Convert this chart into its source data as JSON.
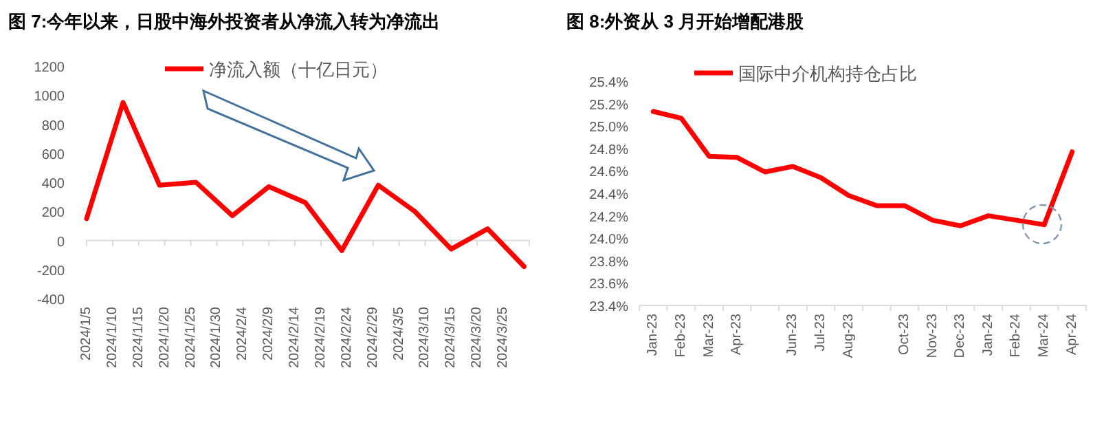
{
  "chart_data": [
    {
      "type": "line",
      "title": "图 7:今年以来，日股中海外投资者从净流入转为净流出",
      "x": [
        "2024-01-05",
        "2024-01-12",
        "2024-01-19",
        "2024-01-26",
        "2024-02-02",
        "2024-02-09",
        "2024-02-16",
        "2024-02-23",
        "2024-03-01",
        "2024-03-08",
        "2024-03-15",
        "2024-03-22",
        "2024-03-29"
      ],
      "xlim": [
        "2024-01-05",
        "2024-03-30"
      ],
      "xticks": [
        {
          "value": "2024-01-05",
          "label": "2024/1/5"
        },
        {
          "value": "2024-01-10",
          "label": "2024/1/10"
        },
        {
          "value": "2024-01-15",
          "label": "2024/1/15"
        },
        {
          "value": "2024-01-20",
          "label": "2024/1/20"
        },
        {
          "value": "2024-01-25",
          "label": "2024/1/25"
        },
        {
          "value": "2024-01-30",
          "label": "2024/1/30"
        },
        {
          "value": "2024-02-04",
          "label": "2024/2/4"
        },
        {
          "value": "2024-02-09",
          "label": "2024/2/9"
        },
        {
          "value": "2024-02-14",
          "label": "2024/2/14"
        },
        {
          "value": "2024-02-19",
          "label": "2024/2/19"
        },
        {
          "value": "2024-02-24",
          "label": "2024/2/24"
        },
        {
          "value": "2024-02-29",
          "label": "2024/2/29"
        },
        {
          "value": "2024-03-05",
          "label": "2024/3/5"
        },
        {
          "value": "2024-03-10",
          "label": "2024/3/10"
        },
        {
          "value": "2024-03-15",
          "label": "2024/3/15"
        },
        {
          "value": "2024-03-20",
          "label": "2024/3/20"
        },
        {
          "value": "2024-03-25",
          "label": "2024/3/25"
        },
        {
          "value": "2024-03-30",
          "label": null
        }
      ],
      "ylim": [
        -400,
        1200
      ],
      "yticks": [
        -400,
        -200,
        0,
        200,
        400,
        600,
        800,
        1000,
        1200
      ],
      "legend": "top",
      "series": [
        {
          "name": "净流入额（十亿日元）",
          "color": "#ff0000",
          "values": [
            150,
            950,
            380,
            400,
            170,
            370,
            260,
            -70,
            380,
            200,
            -60,
            80,
            -180
          ]
        }
      ]
    },
    {
      "type": "line",
      "title": "图 8:外资从 3 月开始增配港股",
      "categories": [
        "Jan-23",
        "Feb-23",
        "Mar-23",
        "Apr-23",
        null,
        "Jun-23",
        "Jul-23",
        "Aug-23",
        null,
        "Oct-23",
        "Nov-23",
        "Dec-23",
        "Jan-24",
        "Feb-24",
        "Mar-24",
        "Apr-24"
      ],
      "ylim": [
        23.4,
        25.4
      ],
      "yticks": [
        {
          "value": 23.4,
          "label": "23.4%"
        },
        {
          "value": 23.6,
          "label": "23.6%"
        },
        {
          "value": 23.8,
          "label": "23.8%"
        },
        {
          "value": 24.0,
          "label": "24.0%"
        },
        {
          "value": 24.2,
          "label": "24.2%"
        },
        {
          "value": 24.4,
          "label": "24.4%"
        },
        {
          "value": 24.6,
          "label": "24.6%"
        },
        {
          "value": 24.8,
          "label": "24.8%"
        },
        {
          "value": 25.0,
          "label": "25.0%"
        },
        {
          "value": 25.2,
          "label": "25.2%"
        },
        {
          "value": 25.4,
          "label": "25.4%"
        }
      ],
      "legend": "top",
      "series": [
        {
          "name": "国际中介机构持仓占比",
          "color": "#ff0000",
          "values": [
            25.13,
            25.07,
            24.73,
            24.72,
            24.59,
            24.64,
            24.54,
            24.38,
            24.29,
            24.29,
            24.16,
            24.11,
            24.2,
            24.16,
            24.12,
            24.77
          ]
        }
      ]
    }
  ]
}
